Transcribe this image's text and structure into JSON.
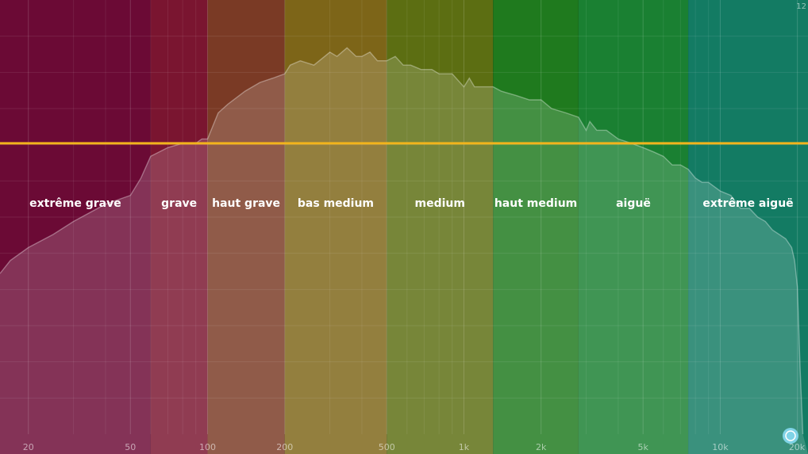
{
  "chart_data": {
    "type": "area",
    "title": "",
    "xlabel": "",
    "ylabel": "",
    "x_scale": "log",
    "xlim": [
      15.5,
      22000
    ],
    "x_ticks": [
      {
        "value": 20,
        "label": "20"
      },
      {
        "value": 50,
        "label": "50"
      },
      {
        "value": 100,
        "label": "100"
      },
      {
        "value": 200,
        "label": "200"
      },
      {
        "value": 500,
        "label": "500"
      },
      {
        "value": 1000,
        "label": "1k"
      },
      {
        "value": 2000,
        "label": "2k"
      },
      {
        "value": 5000,
        "label": "5k"
      },
      {
        "value": 10000,
        "label": "10k"
      },
      {
        "value": 20000,
        "label": "20k"
      }
    ],
    "y_top_label": "12",
    "grid": true,
    "bands": [
      {
        "name": "extrême grave",
        "from": 15.5,
        "to": 60,
        "color": "#6b0a35"
      },
      {
        "name": "grave",
        "from": 60,
        "to": 100,
        "color": "#7a1530"
      },
      {
        "name": "haut grave",
        "from": 100,
        "to": 200,
        "color": "#7a3a25"
      },
      {
        "name": "bas medium",
        "from": 200,
        "to": 500,
        "color": "#7d6518"
      },
      {
        "name": "medium",
        "from": 500,
        "to": 1300,
        "color": "#5c6e12"
      },
      {
        "name": "haut medium",
        "from": 1300,
        "to": 2800,
        "color": "#1f7a1e"
      },
      {
        "name": "aiguë",
        "from": 2800,
        "to": 7500,
        "color": "#1a8032"
      },
      {
        "name": "extrême aiguë",
        "from": 7500,
        "to": 22000,
        "color": "#137b63"
      }
    ],
    "reference_line": {
      "color": "#f2b41c",
      "level": 0.67
    },
    "spectrum": {
      "x": [
        15.5,
        17,
        20,
        25,
        30,
        40,
        50,
        55,
        60,
        70,
        80,
        90,
        95,
        100,
        110,
        120,
        140,
        160,
        180,
        200,
        210,
        230,
        260,
        300,
        320,
        350,
        380,
        400,
        430,
        460,
        500,
        540,
        580,
        620,
        680,
        750,
        800,
        900,
        1000,
        1050,
        1100,
        1200,
        1300,
        1400,
        1600,
        1800,
        2000,
        2200,
        2500,
        2800,
        3000,
        3100,
        3300,
        3600,
        4000,
        4500,
        5000,
        5500,
        6000,
        6500,
        7000,
        7500,
        8000,
        8500,
        9000,
        10000,
        11000,
        12000,
        13000,
        14000,
        15000,
        16000,
        17000,
        18000,
        19000,
        19500,
        20000,
        20500,
        21000
      ],
      "level": [
        0.37,
        0.4,
        0.43,
        0.46,
        0.49,
        0.53,
        0.55,
        0.59,
        0.64,
        0.66,
        0.67,
        0.67,
        0.68,
        0.68,
        0.74,
        0.76,
        0.79,
        0.81,
        0.82,
        0.83,
        0.85,
        0.86,
        0.85,
        0.88,
        0.87,
        0.89,
        0.87,
        0.87,
        0.88,
        0.86,
        0.86,
        0.87,
        0.85,
        0.85,
        0.84,
        0.84,
        0.83,
        0.83,
        0.8,
        0.82,
        0.8,
        0.8,
        0.8,
        0.79,
        0.78,
        0.77,
        0.77,
        0.75,
        0.74,
        0.73,
        0.7,
        0.72,
        0.7,
        0.7,
        0.68,
        0.67,
        0.66,
        0.65,
        0.64,
        0.62,
        0.62,
        0.61,
        0.59,
        0.58,
        0.58,
        0.56,
        0.55,
        0.52,
        0.52,
        0.5,
        0.49,
        0.47,
        0.46,
        0.45,
        0.43,
        0.4,
        0.34,
        0.15,
        0.0
      ]
    }
  }
}
